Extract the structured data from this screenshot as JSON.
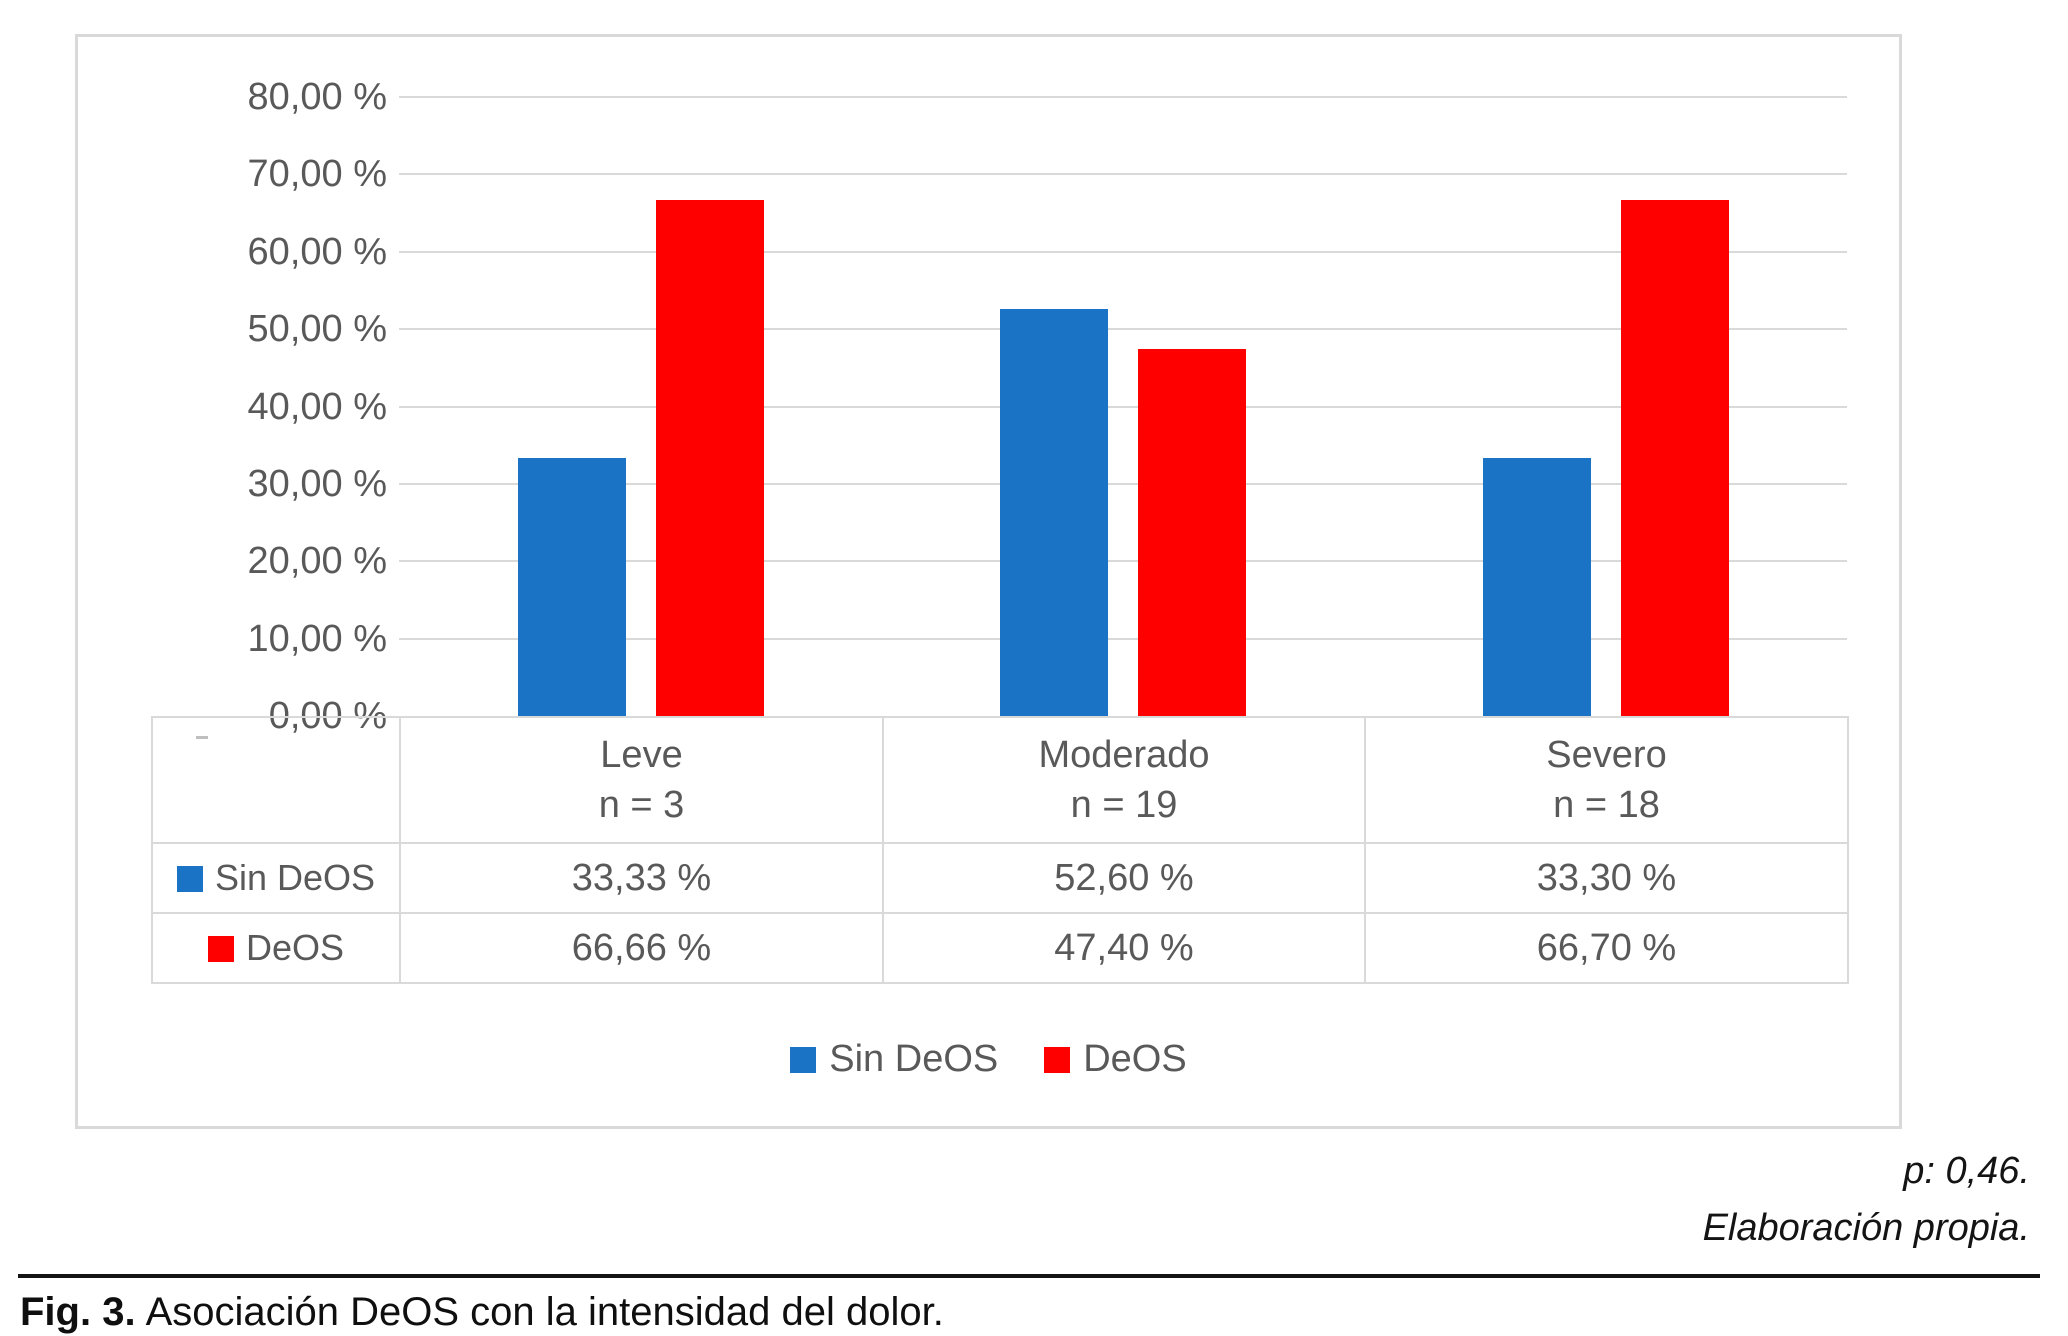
{
  "chart_data": {
    "type": "bar",
    "title": "",
    "categories": [
      "Leve",
      "Moderado",
      "Severo"
    ],
    "category_sublabels": [
      "n = 3",
      "n = 19",
      "n = 18"
    ],
    "series": [
      {
        "name": "Sin DeOS",
        "color": "#1b73c6",
        "values": [
          33.33,
          52.6,
          33.3
        ],
        "value_labels": [
          "33,33 %",
          "52,60 %",
          "33,30 %"
        ]
      },
      {
        "name": "DeOS",
        "color": "#fe0000",
        "values": [
          66.66,
          47.4,
          66.7
        ],
        "value_labels": [
          "66,66 %",
          "47,40 %",
          "66,70 %"
        ]
      }
    ],
    "xlabel": "",
    "ylabel": "",
    "ylim": [
      0,
      80
    ],
    "ytick_interval": 10,
    "ytick_labels": [
      "0,00 %",
      "10,00 %",
      "20,00 %",
      "30,00 %",
      "40,00 %",
      "50,00 %",
      "60,00 %",
      "70,00 %",
      "80,00 %"
    ],
    "grid": true,
    "legend": [
      "Sin DeOS",
      "DeOS"
    ],
    "legend_position": "bottom",
    "data_table_shown": true,
    "axis_text_color": "#595959",
    "gridline_color": "#d9d9d9"
  },
  "annotations": {
    "p_value": "p: 0,46.",
    "source": "Elaboración propia."
  },
  "caption": {
    "label": "Fig. 3.",
    "text": "Asociación DeOS con la intensidad del dolor."
  }
}
